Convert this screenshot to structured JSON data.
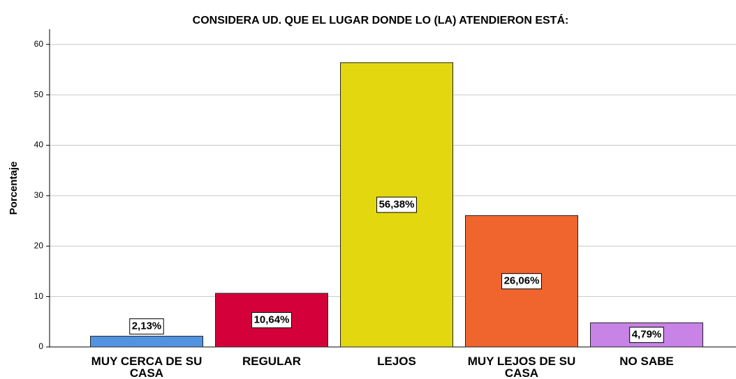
{
  "chart_data": {
    "type": "bar",
    "title": "CONSIDERA UD. QUE EL LUGAR DONDE LO (LA) ATENDIERON ESTÁ:",
    "y_label": "Porcentaje",
    "categories": [
      "MUY CERCA DE SU CASA",
      "REGULAR",
      "LEJOS",
      "MUY LEJOS DE SU CASA",
      "NO SABE"
    ],
    "values": [
      2.13,
      10.64,
      56.38,
      26.06,
      4.79
    ],
    "value_labels": [
      "2,13%",
      "10,64%",
      "56,38%",
      "26,06%",
      "4,79%"
    ],
    "colors": [
      "#5294e2",
      "#d4003a",
      "#e3d80f",
      "#f0652e",
      "#c783e5"
    ],
    "ylim": [
      0,
      63
    ],
    "yticks": [
      0,
      10,
      20,
      30,
      40,
      50,
      60
    ],
    "grid": true
  }
}
